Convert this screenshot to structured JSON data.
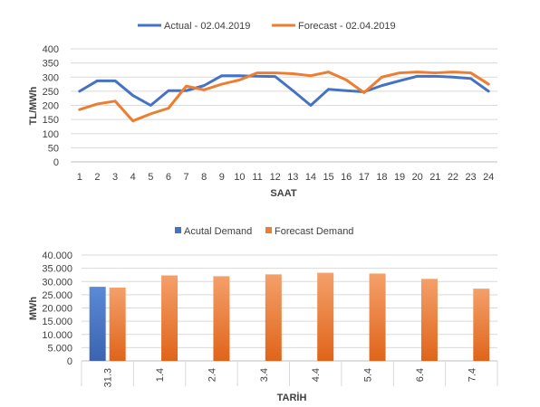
{
  "chart_data": [
    {
      "type": "line",
      "title": "",
      "xlabel": "SAAT",
      "ylabel": "TL/MWh",
      "categories": [
        "1",
        "2",
        "3",
        "4",
        "5",
        "6",
        "7",
        "8",
        "9",
        "10",
        "11",
        "12",
        "13",
        "14",
        "15",
        "16",
        "17",
        "18",
        "19",
        "20",
        "21",
        "22",
        "23",
        "24"
      ],
      "ylim": [
        0,
        400
      ],
      "yticks": [
        0,
        50,
        100,
        150,
        200,
        250,
        300,
        350,
        400
      ],
      "grid": true,
      "legend": "top",
      "series": [
        {
          "name": "Actual - 02.04.2019",
          "color": "#4472C4",
          "values": [
            250,
            287,
            287,
            235,
            200,
            252,
            252,
            270,
            305,
            305,
            303,
            302,
            252,
            200,
            257,
            252,
            248,
            270,
            287,
            303,
            303,
            300,
            295,
            250
          ]
        },
        {
          "name": "Forecast - 02.04.2019",
          "color": "#ED7D31",
          "values": [
            185,
            205,
            215,
            145,
            170,
            190,
            268,
            255,
            275,
            290,
            315,
            315,
            312,
            305,
            318,
            290,
            245,
            300,
            315,
            318,
            315,
            318,
            315,
            275
          ]
        }
      ]
    },
    {
      "type": "bar",
      "title": "",
      "xlabel": "TARİH",
      "ylabel": "MWh",
      "categories": [
        "31.3",
        "1.4",
        "2.4",
        "3.4",
        "4.4",
        "5.4",
        "6.4",
        "7.4"
      ],
      "ylim": [
        0,
        40000
      ],
      "ytick_labels": [
        "0",
        "5.000",
        "10.000",
        "15.000",
        "20.000",
        "25.000",
        "30.000",
        "35.000",
        "40.000"
      ],
      "grid": true,
      "legend": "top",
      "series": [
        {
          "name": "Acutal Demand",
          "color": "#4472C4",
          "values": [
            28000,
            null,
            null,
            null,
            null,
            null,
            null,
            null
          ]
        },
        {
          "name": "Forecast Demand",
          "color": "#ED7D31",
          "values": [
            27700,
            32300,
            32000,
            32700,
            33300,
            33000,
            31000,
            27300
          ]
        }
      ]
    }
  ]
}
